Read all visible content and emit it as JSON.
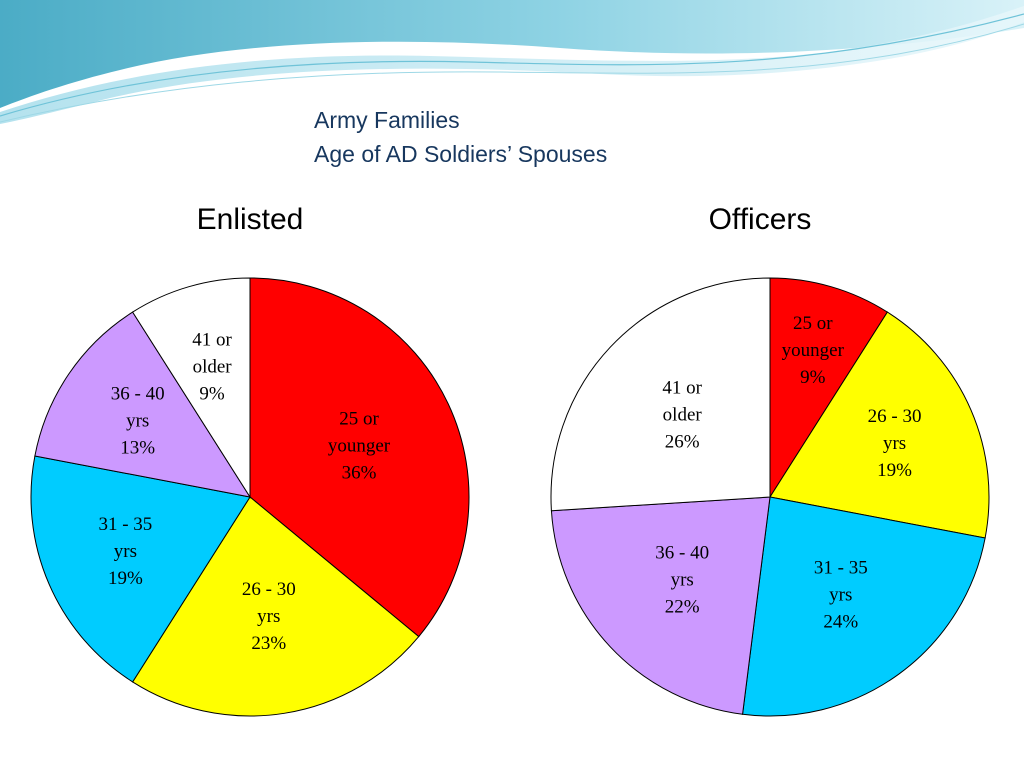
{
  "slide": {
    "title_line1": "Army Families",
    "title_line2": "Age of AD Soldiers’ Spouses"
  },
  "colors": {
    "title": "#17375E",
    "wave_dark": "#4BACC6",
    "wave_light": "#B7E3EE"
  },
  "chart_data": [
    {
      "type": "pie",
      "title": "Enlisted",
      "start": "12 o'clock",
      "direction": "clockwise",
      "slices": [
        {
          "label": [
            "25 or",
            "younger",
            "36%"
          ],
          "value": 36,
          "color": "#FF0000"
        },
        {
          "label": [
            "26 - 30",
            "yrs",
            "23%"
          ],
          "value": 23,
          "color": "#FFFF00"
        },
        {
          "label": [
            "31 - 35",
            "yrs",
            "19%"
          ],
          "value": 19,
          "color": "#00CCFF"
        },
        {
          "label": [
            "36 - 40",
            "yrs",
            "13%"
          ],
          "value": 13,
          "color": "#CC99FF"
        },
        {
          "label": [
            "41 or",
            "older",
            "9%"
          ],
          "value": 9,
          "color": "#FFFFFF"
        }
      ]
    },
    {
      "type": "pie",
      "title": "Officers",
      "start": "12 o'clock",
      "direction": "clockwise",
      "slices": [
        {
          "label": [
            "25 or",
            "younger",
            "9%"
          ],
          "value": 9,
          "color": "#FF0000"
        },
        {
          "label": [
            "26 - 30",
            "yrs",
            "19%"
          ],
          "value": 19,
          "color": "#FFFF00"
        },
        {
          "label": [
            "31 - 35",
            "yrs",
            "24%"
          ],
          "value": 24,
          "color": "#00CCFF"
        },
        {
          "label": [
            "36 - 40",
            "yrs",
            "22%"
          ],
          "value": 22,
          "color": "#CC99FF"
        },
        {
          "label": [
            "41 or",
            "older",
            "26%"
          ],
          "value": 26,
          "color": "#FFFFFF"
        }
      ]
    }
  ]
}
